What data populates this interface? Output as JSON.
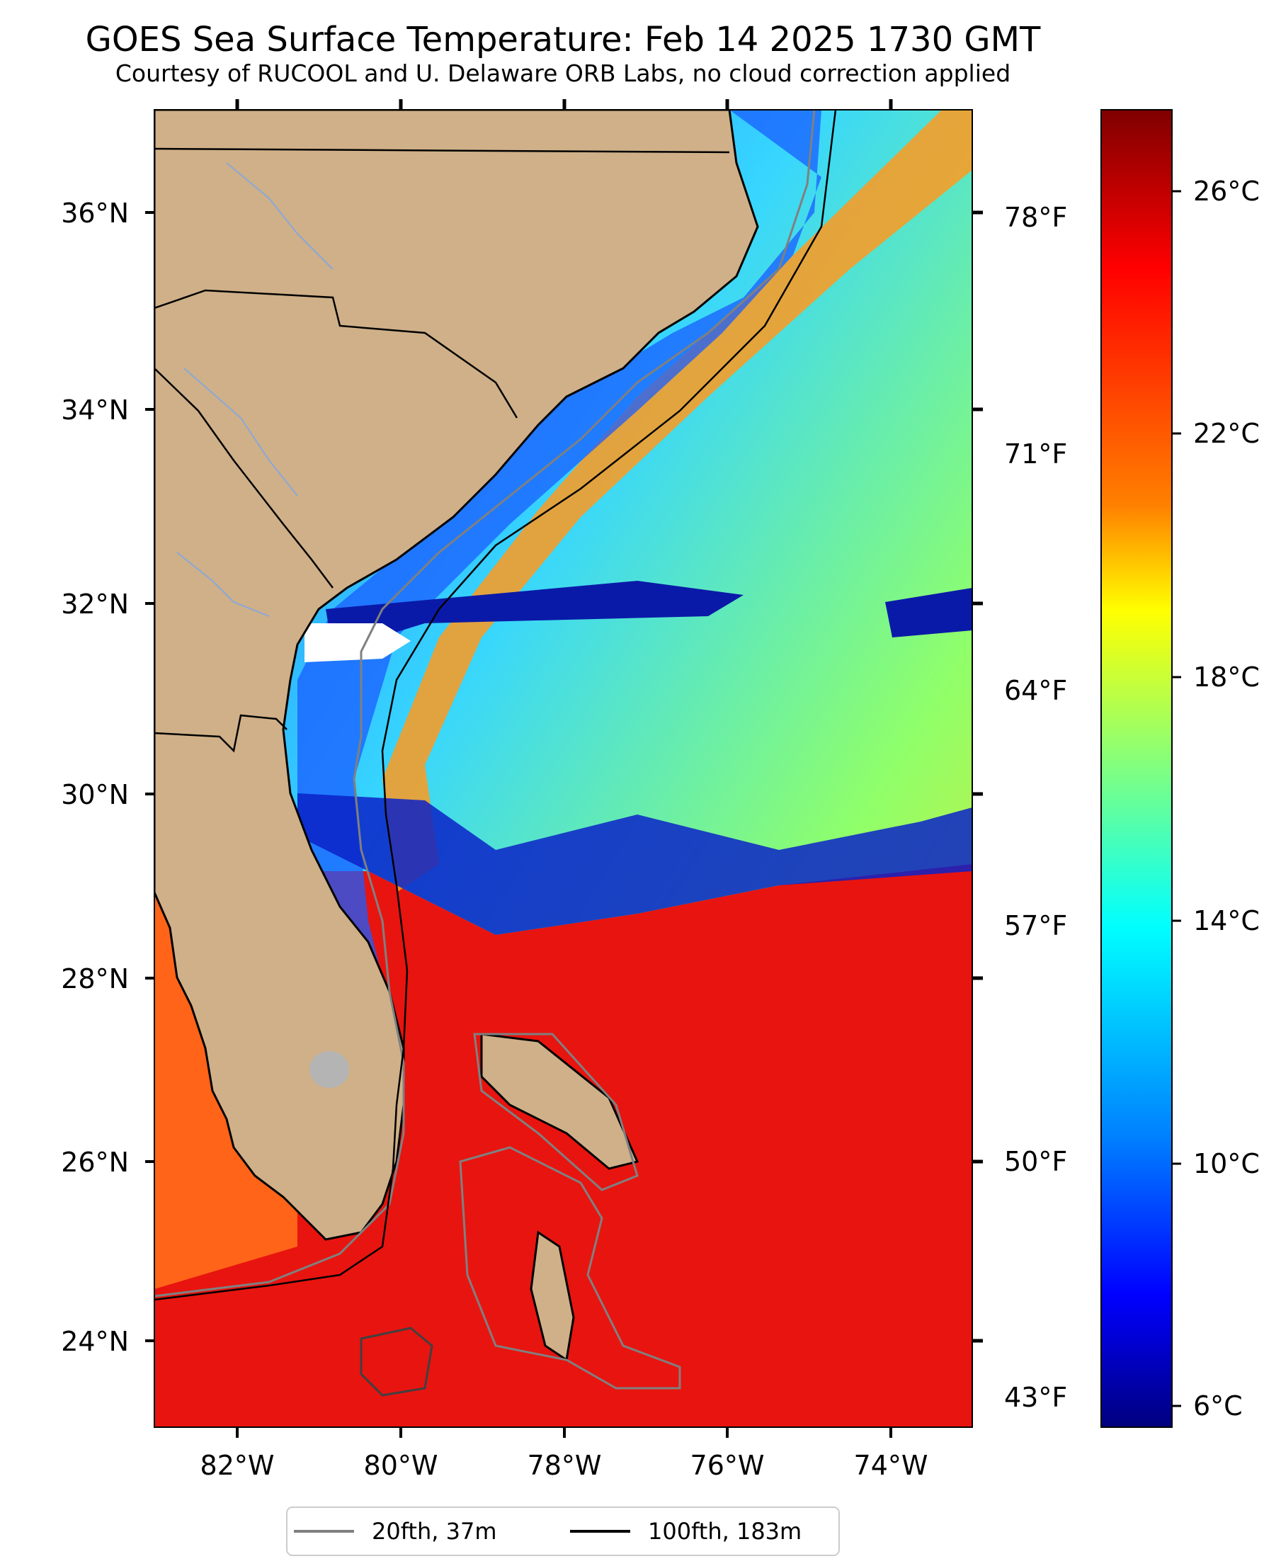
{
  "header": {
    "title": "GOES Sea Surface Temperature: Feb 14 2025 1730 GMT",
    "subtitle": "Courtesy of RUCOOL and U. Delaware ORB Labs, no cloud correction applied"
  },
  "map": {
    "lat_labels": [
      "36°N",
      "34°N",
      "32°N",
      "30°N",
      "28°N",
      "26°N",
      "24°N"
    ],
    "lon_labels": [
      "82°W",
      "80°W",
      "78°W",
      "76°W",
      "74°W"
    ],
    "fahrenheit_labels": [
      "78°F",
      "71°F",
      "64°F",
      "57°F",
      "50°F",
      "43°F"
    ]
  },
  "colorbar": {
    "labels": [
      "26°C",
      "22°C",
      "18°C",
      "14°C",
      "10°C",
      "6°C"
    ],
    "colors": [
      "#7f0000",
      "#ff0000",
      "#ff8000",
      "#ffff00",
      "#80ff80",
      "#00ffff",
      "#0080ff",
      "#0000ff",
      "#00007f"
    ]
  },
  "legend": {
    "items": [
      {
        "label": "20fth, 37m",
        "color": "#808080"
      },
      {
        "label": "100fth, 183m",
        "color": "#000000"
      }
    ]
  }
}
